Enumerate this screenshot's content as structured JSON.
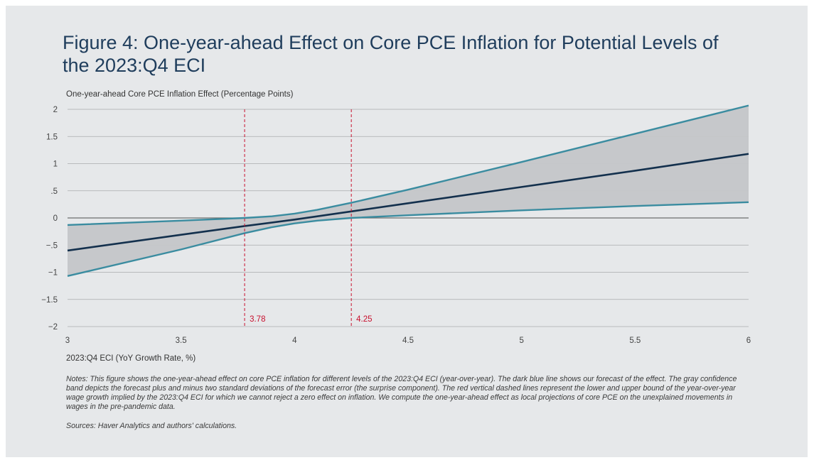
{
  "chart_data": {
    "type": "line",
    "title": "Figure 4: One-year-ahead Effect on Core PCE Inflation for Potential Levels of the 2023:Q4 ECI",
    "ylabel": "One-year-ahead Core PCE Inflation Effect (Percentage Points)",
    "xlabel": "2023:Q4 ECI (YoY Growth Rate, %)",
    "xlim": [
      3,
      6
    ],
    "ylim": [
      -2,
      2
    ],
    "x_ticks": [
      3,
      3.5,
      4,
      4.5,
      5,
      5.5,
      6
    ],
    "x_tick_labels": [
      "3",
      "3.5",
      "4",
      "4.5",
      "5",
      "5.5",
      "6"
    ],
    "y_ticks": [
      2,
      1.5,
      1,
      0.5,
      0,
      -0.5,
      -1,
      -1.5,
      -2
    ],
    "y_tick_labels": [
      "2",
      "1.5",
      "1",
      ".5",
      "0",
      "−.5",
      "−1",
      "−1.5",
      "−2"
    ],
    "grid": true,
    "series": [
      {
        "role": "forecast",
        "color": "#13304d",
        "x": [
          3,
          3.5,
          3.78,
          4,
          4.25,
          4.5,
          5,
          5.5,
          6
        ],
        "y": [
          -0.6,
          -0.31,
          -0.15,
          -0.03,
          0.12,
          0.27,
          0.57,
          0.87,
          1.18
        ]
      },
      {
        "role": "upper-band",
        "color": "#3a8ca0",
        "x": [
          3,
          3.5,
          3.78,
          3.9,
          4,
          4.1,
          4.25,
          4.5,
          5,
          5.5,
          6
        ],
        "y": [
          -0.13,
          -0.05,
          0.0,
          0.03,
          0.08,
          0.15,
          0.28,
          0.52,
          1.03,
          1.55,
          2.07
        ]
      },
      {
        "role": "lower-band",
        "color": "#3a8ca0",
        "x": [
          3,
          3.5,
          3.78,
          3.9,
          4,
          4.1,
          4.25,
          4.5,
          5,
          5.5,
          6
        ],
        "y": [
          -1.07,
          -0.58,
          -0.28,
          -0.17,
          -0.1,
          -0.05,
          0.0,
          0.05,
          0.14,
          0.22,
          0.29
        ]
      }
    ],
    "band_color": "#c4c6c9",
    "vlines": [
      {
        "x": 3.78,
        "label": "3.78",
        "color": "#c8102e"
      },
      {
        "x": 4.25,
        "label": "4.25",
        "color": "#c8102e"
      }
    ]
  },
  "notes": "Notes: This figure shows the one-year-ahead effect on core PCE inflation for different levels of the 2023:Q4 ECI (year-over-year). The dark blue line shows our forecast of the effect. The gray confidence band depicts the forecast plus and minus two standard deviations of the forecast error (the surprise component). The red vertical dashed lines represent the lower and upper bound of the year-over-year wage growth implied by the 2023:Q4 ECI for which we cannot reject a zero effect on inflation. We compute the one-year-ahead effect as local projections of core PCE on the unexplained movements in wages in the pre-pandemic data.",
  "sources": "Sources: Haver Analytics and authors' calculations."
}
